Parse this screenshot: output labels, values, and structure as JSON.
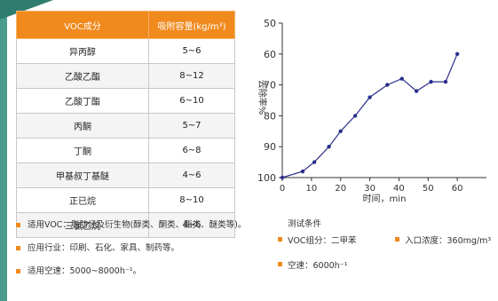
{
  "table": {
    "headers": [
      "VOC成分",
      "吸附容量(kg/m³)"
    ],
    "rows": [
      [
        "异丙醇",
        "5~6"
      ],
      [
        "乙酸乙酯",
        "8~12"
      ],
      [
        "乙酸丁酯",
        "6~10"
      ],
      [
        "丙酮",
        "5~7"
      ],
      [
        "丁酮",
        "6~8"
      ],
      [
        "甲基叔丁基醚",
        "4~6"
      ],
      [
        "正已烷",
        "8~10"
      ],
      [
        "三氯乙烷",
        "4~6"
      ]
    ]
  },
  "notes": [
    "适用VOC：脂肪烃及衍生物(醇类、酮类、酯类、醚类等)。",
    "应用行业：印刷、石化、家具、制药等。",
    "适用空速：5000~8000h⁻¹。"
  ],
  "conditions": {
    "title": "测试条件",
    "voc": "VOC组分：二甲苯",
    "inlet": "入口浓度：360mg/m³",
    "speed": "空速：6000h⁻¹"
  },
  "colors": {
    "accent": "#f08a1d",
    "line": "#2b2f8a",
    "edge": "#4a9d8e"
  },
  "chart_data": {
    "type": "line",
    "xlabel": "时间，min",
    "ylabel": "去除率%",
    "x_ticks": [
      0,
      10,
      20,
      30,
      40,
      50,
      60
    ],
    "y_ticks": [
      50,
      60,
      70,
      80,
      90,
      100
    ],
    "xlim": [
      0,
      70
    ],
    "ylim": [
      100,
      50
    ],
    "grid": false,
    "series": [
      {
        "x": [
          0,
          7,
          11,
          16,
          20,
          25,
          30,
          36,
          41,
          46,
          51,
          56,
          60
        ],
        "y": [
          100,
          98,
          95,
          90,
          85,
          80,
          74,
          70,
          68,
          72,
          69,
          69,
          60
        ]
      }
    ]
  }
}
